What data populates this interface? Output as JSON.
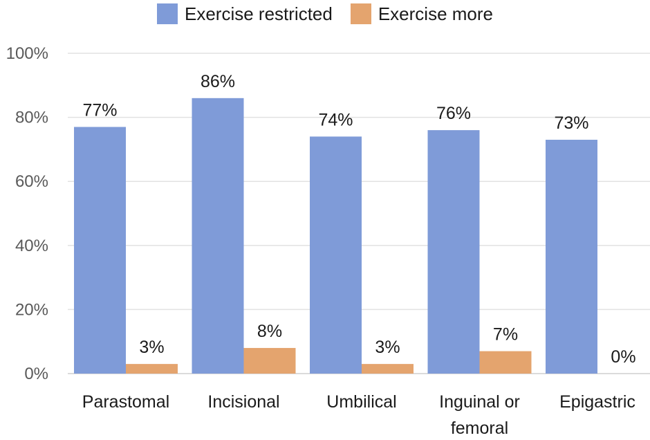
{
  "chart_data": {
    "type": "bar",
    "title": "",
    "xlabel": "",
    "ylabel": "",
    "ylim": [
      0,
      100
    ],
    "y_ticks": [
      0,
      20,
      40,
      60,
      80,
      100
    ],
    "y_tick_labels": [
      "0%",
      "20%",
      "40%",
      "60%",
      "80%",
      "100%"
    ],
    "categories": [
      [
        "Parastomal"
      ],
      [
        "Incisional"
      ],
      [
        "Umbilical"
      ],
      [
        "Inguinal or",
        "femoral"
      ],
      [
        "Epigastric"
      ]
    ],
    "grid": true,
    "legend_position": "top-center",
    "series": [
      {
        "name": "Exercise restricted",
        "color": "#7f9bd8",
        "values": [
          77,
          86,
          74,
          76,
          73
        ],
        "labels": [
          "77%",
          "86%",
          "74%",
          "76%",
          "73%"
        ]
      },
      {
        "name": "Exercise more",
        "color": "#e4a46e",
        "values": [
          3,
          8,
          3,
          7,
          0
        ],
        "labels": [
          "3%",
          "8%",
          "3%",
          "7%",
          "0%"
        ]
      }
    ]
  }
}
